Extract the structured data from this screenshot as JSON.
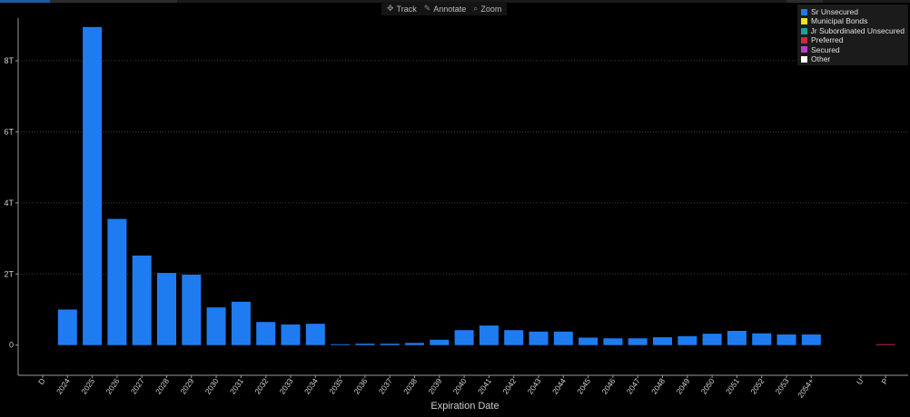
{
  "toolbar": {
    "items": [
      {
        "label": "Track",
        "icon": "crosshair-icon",
        "glyph": "✥"
      },
      {
        "label": "Annotate",
        "icon": "pencil-icon",
        "glyph": "✎"
      },
      {
        "label": "Zoom",
        "icon": "magnifier-icon",
        "glyph": "⌕"
      }
    ]
  },
  "legend": {
    "items": [
      {
        "label": "Sr Unsecured",
        "color": "#1e7cf0"
      },
      {
        "label": "Municipal Bonds",
        "color": "#f2e21b"
      },
      {
        "label": "Jr Subordinated Unsecured",
        "color": "#1aa39a"
      },
      {
        "label": "Preferred",
        "color": "#c8284b"
      },
      {
        "label": "Secured",
        "color": "#c23cc8"
      },
      {
        "label": "Other",
        "color": "#ffffff"
      }
    ]
  },
  "chart_data": {
    "type": "bar",
    "title": "",
    "xlabel": "Expiration Date",
    "ylabel": "",
    "ylim": [
      -0.85,
      9.2
    ],
    "yticks": [
      0,
      2,
      4,
      6,
      8
    ],
    "ytick_labels": [
      "0",
      "2T",
      "4T",
      "6T",
      "8T"
    ],
    "grid": true,
    "legend_position": "top-right",
    "categories": [
      "D",
      "2024",
      "2025",
      "2026",
      "2027",
      "2028",
      "2029",
      "2030",
      "2031",
      "2032",
      "2033",
      "2034",
      "2035",
      "2036",
      "2037",
      "2038",
      "2039",
      "2040",
      "2041",
      "2042",
      "2043",
      "2044",
      "2045",
      "2046",
      "2047",
      "2048",
      "2049",
      "2050",
      "2051",
      "2052",
      "2053",
      "2054+",
      "",
      "U",
      "P"
    ],
    "series": [
      {
        "name": "Sr Unsecured",
        "color": "#1e7cf0",
        "values": [
          0,
          1.0,
          8.95,
          3.55,
          2.52,
          2.03,
          1.98,
          1.06,
          1.22,
          0.65,
          0.58,
          0.6,
          0.01,
          0.04,
          0.04,
          0.06,
          0.15,
          0.42,
          0.55,
          0.42,
          0.38,
          0.38,
          0.21,
          0.19,
          0.19,
          0.22,
          0.25,
          0.32,
          0.4,
          0.33,
          0.3,
          0.3,
          0,
          0,
          0
        ]
      },
      {
        "name": "Preferred",
        "color": "#c8284b",
        "values": [
          0,
          0,
          0,
          0,
          0,
          0,
          0,
          0,
          0,
          0,
          0,
          0,
          0,
          0,
          0,
          0,
          0,
          0,
          0,
          0,
          0,
          0,
          0,
          0,
          0,
          0,
          0,
          0,
          0,
          0,
          0,
          0,
          0,
          0,
          0.02
        ]
      }
    ]
  }
}
